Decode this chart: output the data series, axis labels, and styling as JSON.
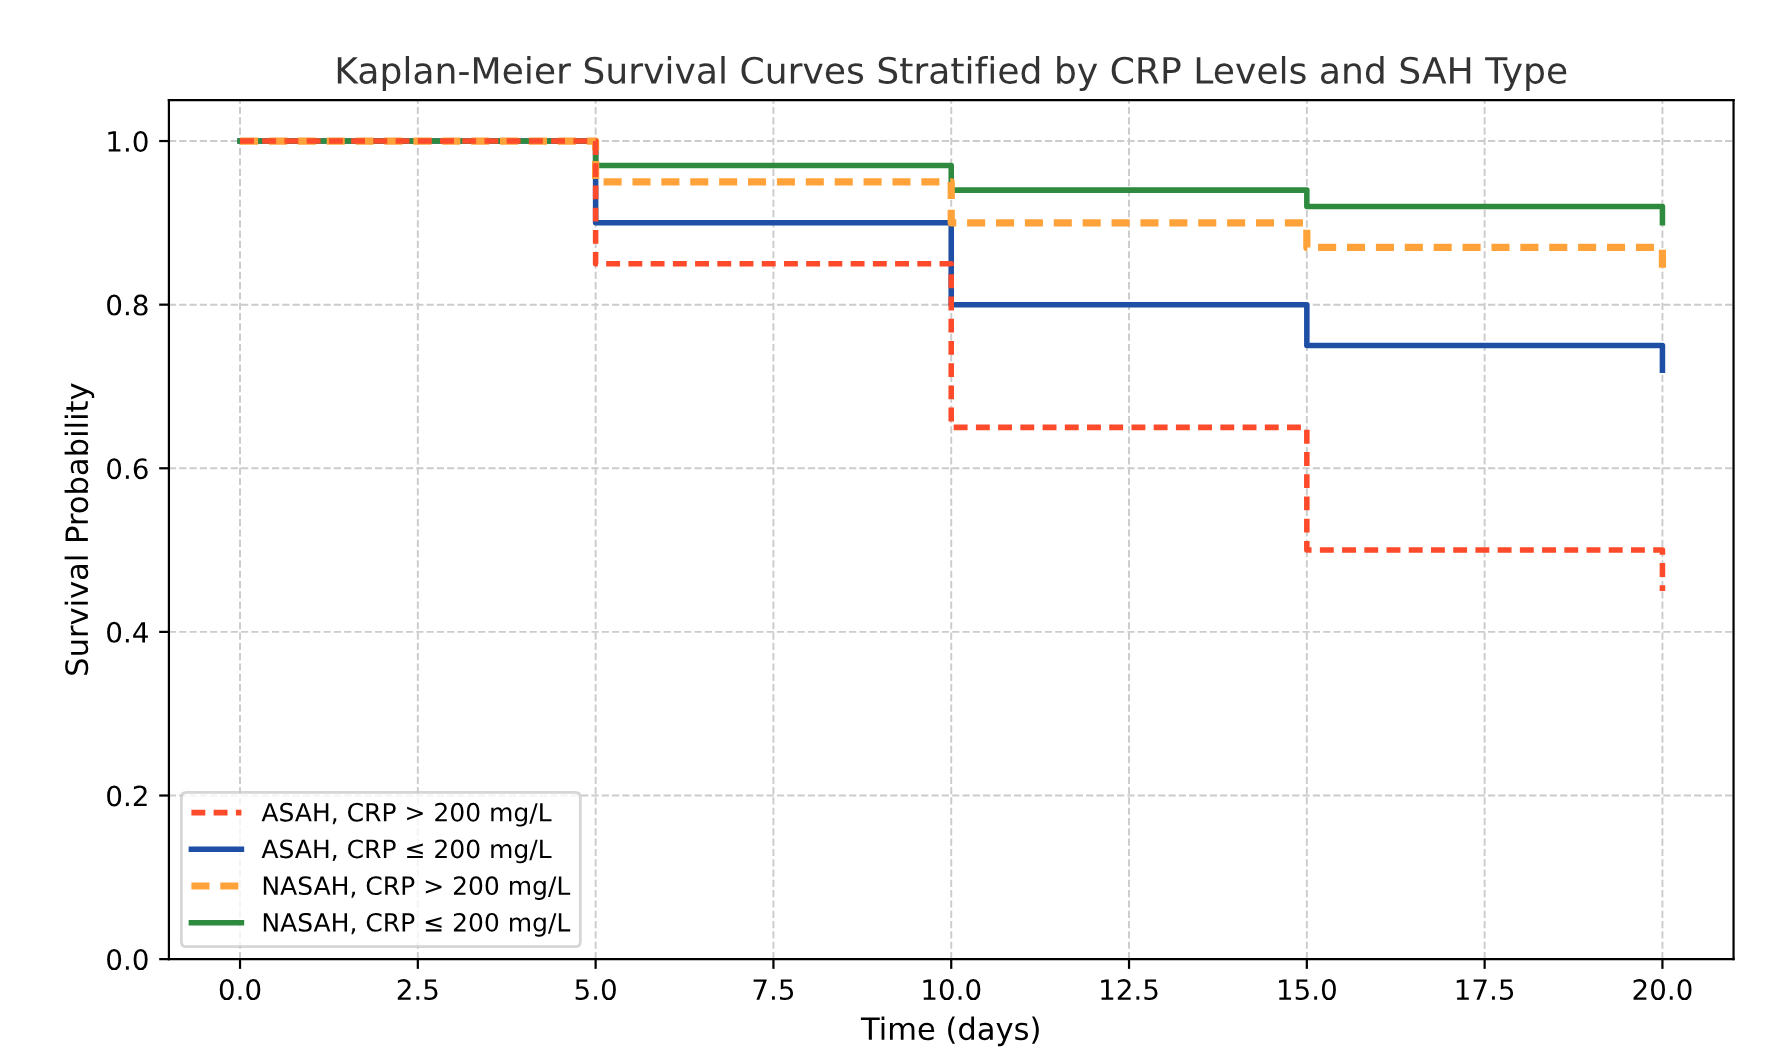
{
  "chart_data": {
    "type": "step",
    "title": "Kaplan-Meier Survival Curves Stratified by CRP Levels and SAH Type",
    "xlabel": "Time (days)",
    "ylabel": "Survival Probability",
    "x": [
      0,
      5,
      10,
      15,
      20
    ],
    "series": [
      {
        "name": "ASAH, CRP > 200 mg/L",
        "color": "#fc4a2a",
        "line_style": "dashed",
        "values": [
          1.0,
          0.85,
          0.65,
          0.5,
          0.45
        ]
      },
      {
        "name": "ASAH, CRP ≤ 200 mg/L",
        "color": "#1f4fa5",
        "line_style": "solid",
        "values": [
          1.0,
          0.9,
          0.8,
          0.75,
          0.72
        ]
      },
      {
        "name": "NASAH, CRP > 200 mg/L",
        "color": "#ffa23a",
        "line_style": "dashed",
        "values": [
          1.0,
          0.95,
          0.9,
          0.87,
          0.84
        ]
      },
      {
        "name": "NASAH, CRP ≤ 200 mg/L",
        "color": "#2e8a3e",
        "line_style": "solid",
        "values": [
          1.0,
          0.97,
          0.94,
          0.92,
          0.9
        ]
      }
    ],
    "xlim": [
      -1,
      21
    ],
    "xticks": [
      {
        "value": 0,
        "label": "0.0"
      },
      2.5,
      {
        "value": 5,
        "label": "5.0"
      },
      7.5,
      {
        "value": 10,
        "label": "10.0"
      },
      12.5,
      {
        "value": 15,
        "label": "15.0"
      },
      17.5,
      {
        "value": 20,
        "label": "20.0"
      }
    ],
    "ylim": [
      0,
      1.05
    ],
    "yticks": [
      {
        "value": 0,
        "label": "0.0"
      },
      0.2,
      0.4,
      0.6,
      0.8,
      {
        "value": 1,
        "label": "1.0"
      }
    ],
    "grid": true,
    "legend": "bottom left"
  }
}
